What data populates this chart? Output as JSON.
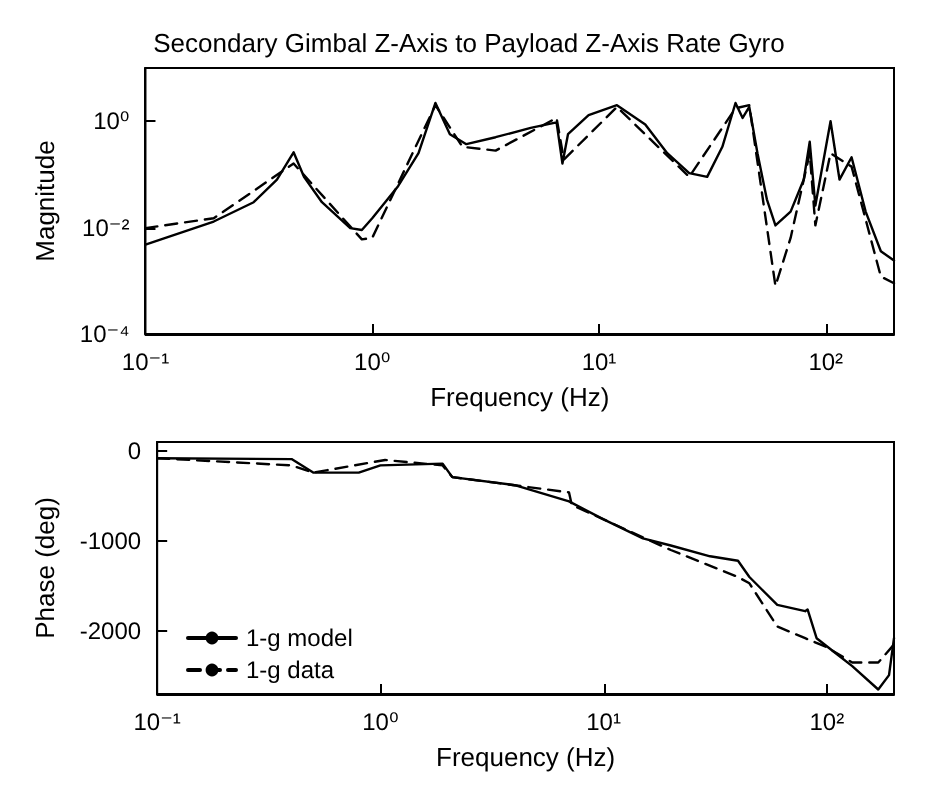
{
  "chart_data": [
    {
      "type": "line",
      "title": "Secondary Gimbal Z-Axis to Payload Z-Axis Rate Gyro",
      "xlabel": "Frequency (Hz)",
      "ylabel": "Magnitude",
      "log": "xy",
      "grid": false,
      "xlim": [
        0.1,
        200
      ],
      "xticks": [
        {
          "value": 0.1,
          "label": "10⁻¹"
        },
        {
          "value": 1,
          "label": "10⁰"
        },
        {
          "value": 10,
          "label": "10¹"
        },
        {
          "value": 100,
          "label": "10²"
        }
      ],
      "ylim": [
        0.0001,
        10
      ],
      "yticks": [
        {
          "value": 0.0001,
          "label": "10⁻⁴"
        },
        {
          "value": 0.01,
          "label": "10⁻²"
        },
        {
          "value": 1,
          "label": "10⁰"
        }
      ],
      "series": [
        {
          "color": "#000000",
          "line_style": "solid",
          "x": [
            0.1,
            0.2,
            0.3,
            0.38,
            0.45,
            0.5,
            0.6,
            0.8,
            0.9,
            1.0,
            1.3,
            1.6,
            1.9,
            2.2,
            2.6,
            3.5,
            5,
            6.5,
            6.9,
            7.3,
            9,
            12,
            16,
            20,
            25,
            30,
            35,
            40,
            43,
            46,
            50,
            55,
            60,
            70,
            80,
            85,
            90,
            105,
            115,
            130,
            150,
            175,
            200
          ],
          "values": [
            0.0048,
            0.013,
            0.03,
            0.08,
            0.26,
            0.09,
            0.03,
            0.0098,
            0.009,
            0.015,
            0.06,
            0.25,
            2.2,
            0.57,
            0.37,
            0.5,
            0.75,
            0.95,
            0.16,
            0.57,
            1.3,
            2.0,
            0.87,
            0.25,
            0.106,
            0.09,
            0.33,
            2.2,
            1.15,
            1.85,
            0.25,
            0.034,
            0.011,
            0.02,
            0.08,
            0.41,
            0.026,
            1.0,
            0.08,
            0.21,
            0.02,
            0.0036,
            0.0024
          ]
        },
        {
          "color": "#000000",
          "line_style": "dashed",
          "x": [
            0.1,
            0.2,
            0.45,
            0.9,
            1.0,
            1.9,
            2.5,
            3.5,
            6.5,
            7.0,
            12,
            25,
            40,
            46,
            60,
            70,
            85,
            90,
            105,
            130,
            175,
            200
          ],
          "values": [
            0.0098,
            0.015,
            0.16,
            0.006,
            0.0064,
            2.0,
            0.33,
            0.28,
            1.15,
            0.19,
            1.85,
            0.09,
            1.75,
            2.0,
            0.0008,
            0.0064,
            0.25,
            0.011,
            0.25,
            0.14,
            0.0012,
            0.0009
          ]
        }
      ]
    },
    {
      "type": "line",
      "xlabel": "Frequency (Hz)",
      "ylabel": "Phase (deg)",
      "log": "x",
      "grid": false,
      "legend": "left",
      "xlim": [
        0.1,
        200
      ],
      "xticks": [
        {
          "value": 0.1,
          "label": "10⁻¹"
        },
        {
          "value": 1,
          "label": "10⁰"
        },
        {
          "value": 10,
          "label": "10¹"
        },
        {
          "value": 100,
          "label": "10²"
        }
      ],
      "ylim": [
        -2700,
        100
      ],
      "yticks": [
        -2000,
        -1000,
        0
      ],
      "series": [
        {
          "name": "1-g model",
          "color": "#000000",
          "line_style": "solid",
          "x": [
            0.1,
            0.4,
            0.5,
            0.8,
            1.0,
            1.9,
            2.1,
            4,
            7,
            10,
            15,
            20,
            30,
            40,
            45,
            60,
            80,
            82,
            90,
            110,
            130,
            170,
            190,
            200
          ],
          "values": [
            -80,
            -90,
            -240,
            -240,
            -160,
            -140,
            -290,
            -380,
            -560,
            -760,
            -970,
            -1050,
            -1170,
            -1220,
            -1400,
            -1710,
            -1780,
            -1760,
            -2080,
            -2250,
            -2390,
            -2650,
            -2490,
            -2080
          ]
        },
        {
          "name": "1-g data",
          "color": "#000000",
          "line_style": "dashed",
          "x": [
            0.1,
            0.4,
            0.5,
            1.05,
            1.9,
            2.1,
            7,
            7.2,
            10,
            20,
            40,
            45,
            60,
            80,
            100,
            130,
            170,
            200
          ],
          "values": [
            -80,
            -160,
            -240,
            -100,
            -160,
            -290,
            -460,
            -600,
            -760,
            -1100,
            -1400,
            -1470,
            -1950,
            -2080,
            -2180,
            -2350,
            -2350,
            -2150
          ]
        }
      ]
    }
  ]
}
